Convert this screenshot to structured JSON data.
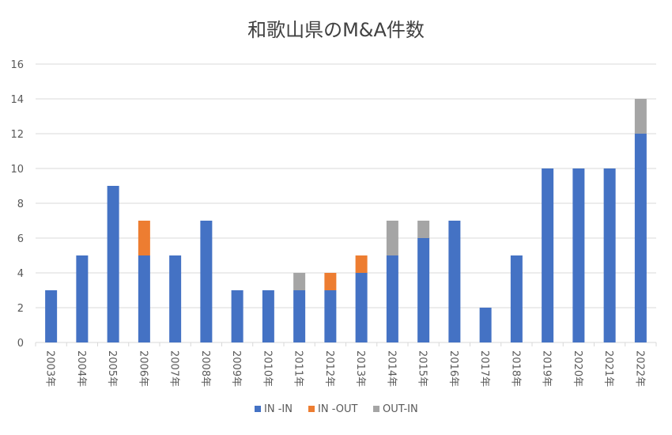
{
  "chart_data": {
    "type": "bar",
    "stacked": true,
    "title": "和歌山県のM&A件数",
    "xlabel": "",
    "ylabel": "",
    "ylim": [
      0,
      16
    ],
    "yticks": [
      0,
      2,
      4,
      6,
      8,
      10,
      12,
      14,
      16
    ],
    "grid": true,
    "legend_position": "bottom",
    "categories": [
      "2003年",
      "2004年",
      "2005年",
      "2006年",
      "2007年",
      "2008年",
      "2009年",
      "2010年",
      "2011年",
      "2012年",
      "2013年",
      "2014年",
      "2015年",
      "2016年",
      "2017年",
      "2018年",
      "2019年",
      "2020年",
      "2021年",
      "2022年"
    ],
    "series": [
      {
        "name": "IN -IN",
        "color": "#4472C4",
        "values": [
          3,
          5,
          9,
          5,
          5,
          7,
          3,
          3,
          3,
          3,
          4,
          5,
          6,
          7,
          2,
          5,
          10,
          10,
          10,
          12
        ]
      },
      {
        "name": "IN -OUT",
        "color": "#ED7D31",
        "values": [
          0,
          0,
          0,
          2,
          0,
          0,
          0,
          0,
          0,
          1,
          1,
          0,
          0,
          0,
          0,
          0,
          0,
          0,
          0,
          0
        ]
      },
      {
        "name": "OUT-IN",
        "color": "#A5A5A5",
        "values": [
          0,
          0,
          0,
          0,
          0,
          0,
          0,
          0,
          1,
          0,
          0,
          2,
          1,
          0,
          0,
          0,
          0,
          0,
          0,
          2
        ]
      }
    ]
  }
}
